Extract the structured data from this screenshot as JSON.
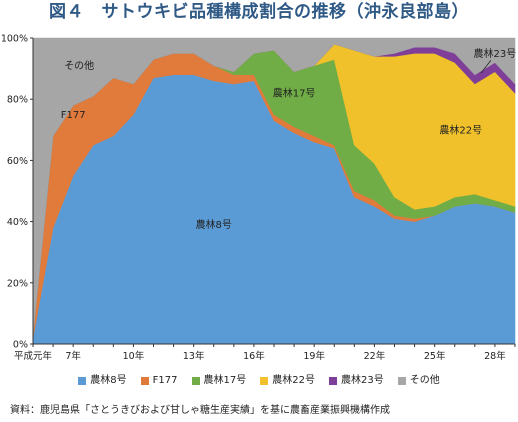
{
  "title": "図４　サトウキビ品種構成割合の推移（沖永良部島）",
  "source": "資料：鹿児島県「さとうきびおよび甘しゃ糖生産実績」を基に農畜産業振興機構作成",
  "chart_data": {
    "type": "area",
    "stacked": true,
    "x": [
      5,
      6,
      7,
      8,
      9,
      10,
      11,
      12,
      13,
      14,
      15,
      16,
      17,
      18,
      19,
      20,
      21,
      22,
      23,
      24,
      25,
      26,
      27,
      28,
      29
    ],
    "x_tick_labels": [
      "平成元年",
      "7年",
      "10年",
      "13年",
      "16年",
      "19年",
      "22年",
      "25年",
      "28年"
    ],
    "x_tick_values": [
      5,
      7,
      10,
      13,
      16,
      19,
      22,
      25,
      28
    ],
    "ylim": [
      0,
      100
    ],
    "y_ticks": [
      0,
      20,
      40,
      60,
      80,
      100
    ],
    "y_tick_labels": [
      "0%",
      "20%",
      "40%",
      "60%",
      "80%",
      "100%"
    ],
    "series": [
      {
        "name": "農林8号",
        "color": "#5b9bd5",
        "values": [
          2,
          38,
          55,
          65,
          68,
          75,
          87,
          88,
          88,
          86,
          85,
          86,
          73,
          69,
          66,
          64,
          48,
          45,
          41,
          40,
          42,
          45,
          46,
          45,
          43
        ]
      },
      {
        "name": "F177",
        "color": "#e07b3c",
        "values": [
          1,
          30,
          23,
          16,
          19,
          10,
          6,
          7,
          7,
          5,
          3,
          2,
          2,
          2,
          2,
          1,
          2,
          2,
          1,
          1,
          0,
          0,
          0,
          0,
          0
        ]
      },
      {
        "name": "農林17号",
        "color": "#70ad47",
        "values": [
          0,
          0,
          0,
          0,
          0,
          0,
          0,
          0,
          0,
          0,
          1,
          7,
          21,
          18,
          23,
          28,
          15,
          12,
          6,
          3,
          3,
          3,
          3,
          2,
          2
        ]
      },
      {
        "name": "農林22号",
        "color": "#f0c12b",
        "values": [
          0,
          0,
          0,
          0,
          0,
          0,
          0,
          0,
          0,
          0,
          0,
          0,
          0,
          0,
          0,
          5,
          31,
          35,
          46,
          51,
          50,
          44,
          36,
          42,
          37
        ]
      },
      {
        "name": "農林23号",
        "color": "#7f3f98",
        "values": [
          0,
          0,
          0,
          0,
          0,
          0,
          0,
          0,
          0,
          0,
          0,
          0,
          0,
          0,
          0,
          0,
          0,
          0,
          1,
          2,
          2,
          3,
          3,
          3,
          3
        ]
      },
      {
        "name": "その他",
        "color": "#a6a6a6",
        "values": [
          97,
          32,
          22,
          19,
          13,
          15,
          7,
          5,
          5,
          9,
          11,
          5,
          4,
          11,
          9,
          2,
          4,
          6,
          5,
          3,
          3,
          5,
          12,
          8,
          15
        ]
      }
    ],
    "annotations": [
      {
        "text": "その他",
        "x": 7.3,
        "y": 91
      },
      {
        "text": "F177",
        "x": 7.0,
        "y": 75
      },
      {
        "text": "農林8号",
        "x": 14.0,
        "y": 39
      },
      {
        "text": "農林17号",
        "x": 18.0,
        "y": 82
      },
      {
        "text": "農林22号",
        "x": 26.3,
        "y": 70
      },
      {
        "text": "農林23号",
        "x": 28.0,
        "y": 95
      }
    ],
    "legend_position": "bottom"
  }
}
